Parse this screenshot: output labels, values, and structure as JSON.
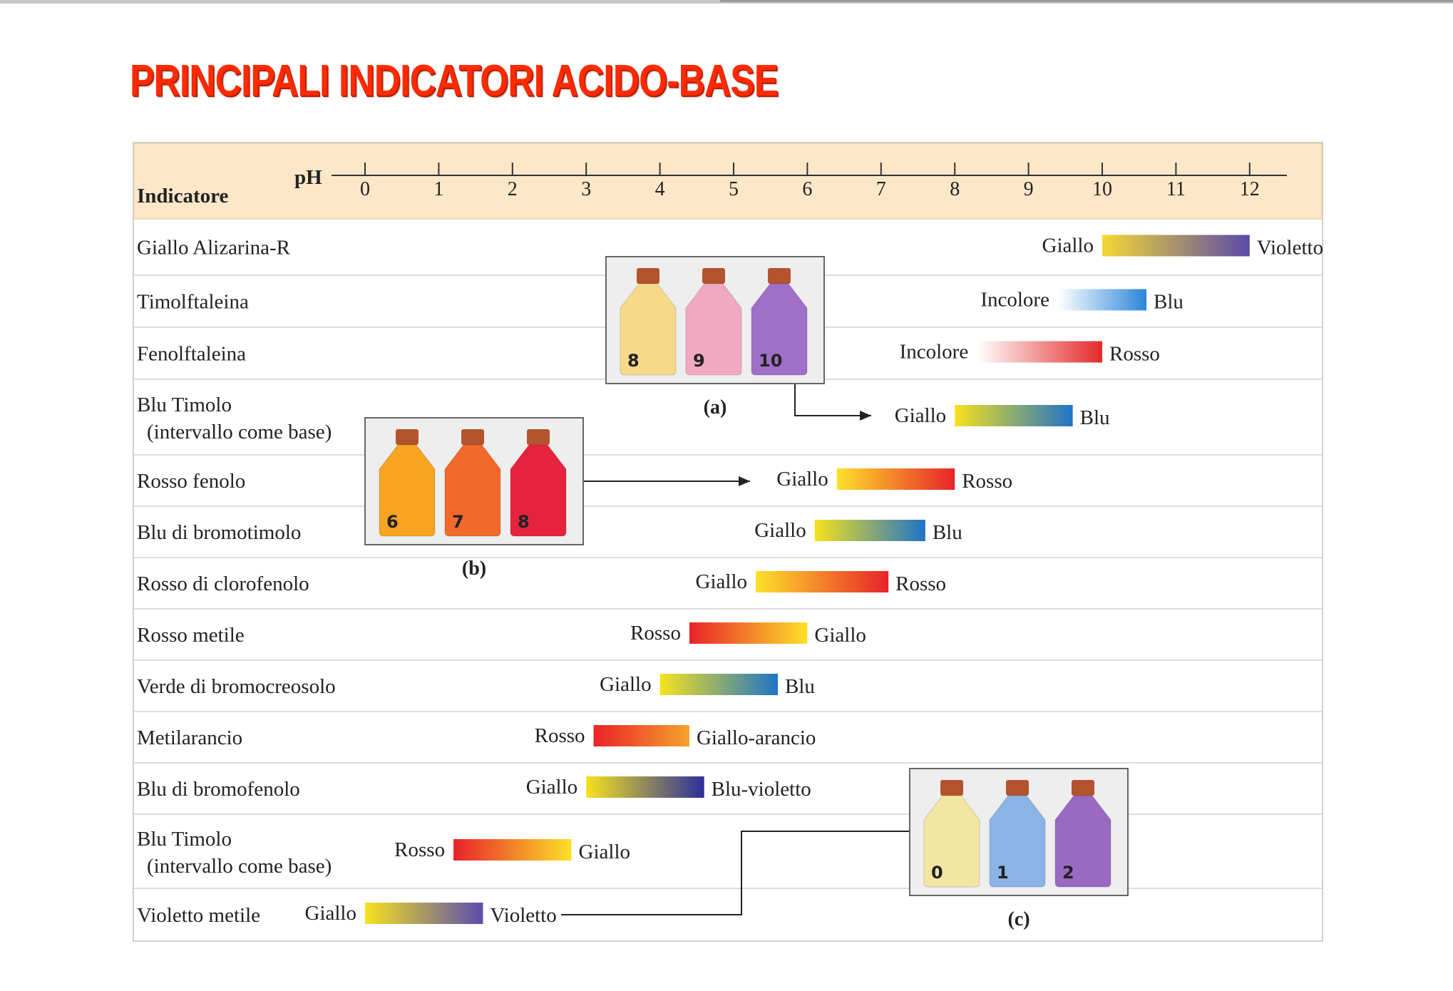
{
  "title": "PRINCIPALI INDICATORI ACIDO-BASE",
  "chart_data": {
    "type": "table",
    "header": {
      "indicator_label": "Indicatore",
      "axis_label": "pH"
    },
    "ph_ticks": [
      "0",
      "1",
      "2",
      "3",
      "4",
      "5",
      "6",
      "7",
      "8",
      "9",
      "10",
      "11",
      "12"
    ],
    "ph_range": [
      0,
      12
    ],
    "rows": [
      {
        "name": [
          "Giallo Alizarina-R"
        ],
        "ph_from": 10.0,
        "ph_to": 12.0,
        "acid_color": "Giallo",
        "base_color": "Violetto",
        "gradient": [
          "#f5d833",
          "#5a4aa8"
        ]
      },
      {
        "name": [
          "Timolftaleina"
        ],
        "ph_from": 9.4,
        "ph_to": 10.6,
        "acid_color": "Incolore",
        "base_color": "Blu",
        "gradient": [
          "#ffffff",
          "#2d86d8"
        ]
      },
      {
        "name": [
          "Fenolftaleina"
        ],
        "ph_from": 8.3,
        "ph_to": 10.0,
        "acid_color": "Incolore",
        "base_color": "Rosso",
        "gradient": [
          "#ffffff",
          "#e42a2a"
        ]
      },
      {
        "name": [
          "Blu Timolo",
          "(intervallo come base)"
        ],
        "ph_from": 8.0,
        "ph_to": 9.6,
        "acid_color": "Giallo",
        "base_color": "Blu",
        "gradient": [
          "#f6e21e",
          "#1f73c8"
        ]
      },
      {
        "name": [
          "Rosso fenolo"
        ],
        "ph_from": 6.4,
        "ph_to": 8.0,
        "acid_color": "Giallo",
        "base_color": "Rosso",
        "gradient": [
          "#fde12a",
          "#e82229"
        ]
      },
      {
        "name": [
          "Blu di bromotimolo"
        ],
        "ph_from": 6.1,
        "ph_to": 7.6,
        "acid_color": "Giallo",
        "base_color": "Blu",
        "gradient": [
          "#f6e21e",
          "#1f73c8"
        ]
      },
      {
        "name": [
          "Rosso di clorofenolo"
        ],
        "ph_from": 5.3,
        "ph_to": 7.1,
        "acid_color": "Giallo",
        "base_color": "Rosso",
        "gradient": [
          "#fde12a",
          "#e82229"
        ]
      },
      {
        "name": [
          "Rosso metile"
        ],
        "ph_from": 4.4,
        "ph_to": 6.0,
        "acid_color": "Rosso",
        "base_color": "Giallo",
        "gradient": [
          "#e82229",
          "#fde12a"
        ]
      },
      {
        "name": [
          "Verde di bromocreosolo"
        ],
        "ph_from": 4.0,
        "ph_to": 5.6,
        "acid_color": "Giallo",
        "base_color": "Blu",
        "gradient": [
          "#f6e21e",
          "#1f73c8"
        ]
      },
      {
        "name": [
          "Metilarancio"
        ],
        "ph_from": 3.1,
        "ph_to": 4.4,
        "acid_color": "Rosso",
        "base_color": "Giallo-arancio",
        "gradient": [
          "#e82229",
          "#f7a22a"
        ]
      },
      {
        "name": [
          "Blu di bromofenolo"
        ],
        "ph_from": 3.0,
        "ph_to": 4.6,
        "acid_color": "Giallo",
        "base_color": "Blu-violetto",
        "gradient": [
          "#f6e21e",
          "#2a2f9c"
        ]
      },
      {
        "name": [
          "Blu Timolo",
          "(intervallo come base)"
        ],
        "ph_from": 1.2,
        "ph_to": 2.8,
        "acid_color": "Rosso",
        "base_color": "Giallo",
        "gradient": [
          "#e82229",
          "#fde12a"
        ]
      },
      {
        "name": [
          "Violetto metile"
        ],
        "ph_from": 0.0,
        "ph_to": 1.6,
        "acid_color": "Giallo",
        "base_color": "Violetto",
        "gradient": [
          "#f6e21e",
          "#5b4cb0"
        ]
      }
    ],
    "photos": [
      {
        "caption": "(a)",
        "bottles": [
          {
            "num": "8",
            "color": "#f7d98a"
          },
          {
            "num": "9",
            "color": "#f0a9c1"
          },
          {
            "num": "10",
            "color": "#a06fc8"
          }
        ]
      },
      {
        "caption": "(b)",
        "bottles": [
          {
            "num": "6",
            "color": "#f7a422"
          },
          {
            "num": "7",
            "color": "#f3692b"
          },
          {
            "num": "8",
            "color": "#e5233e"
          }
        ]
      },
      {
        "caption": "(c)",
        "bottles": [
          {
            "num": "0",
            "color": "#f3e6a2"
          },
          {
            "num": "1",
            "color": "#8bb4e6"
          },
          {
            "num": "2",
            "color": "#9a69c2"
          }
        ]
      }
    ]
  }
}
